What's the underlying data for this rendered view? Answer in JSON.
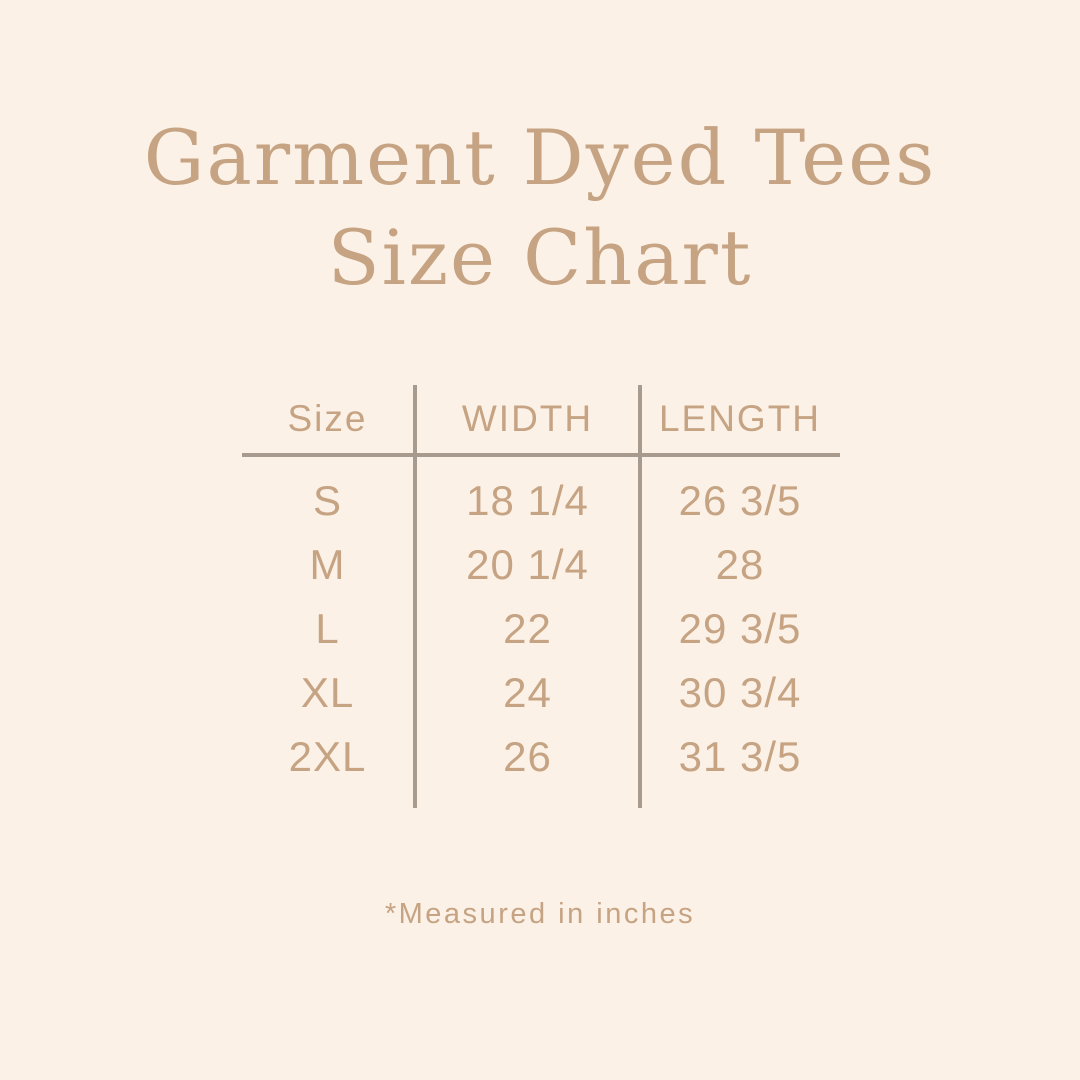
{
  "theme": {
    "bg": "#fcf1e6",
    "text": "#c5a383",
    "line": "#a89a8c"
  },
  "title": {
    "line1": "Garment Dyed Tees",
    "line2": "Size Chart"
  },
  "table": {
    "headers": [
      "Size",
      "WIDTH",
      "LENGTH"
    ],
    "rows": [
      {
        "size": "S",
        "width": "18 1/4",
        "length": "26 3/5"
      },
      {
        "size": "M",
        "width": "20 1/4",
        "length": "28"
      },
      {
        "size": "L",
        "width": "22",
        "length": "29 3/5"
      },
      {
        "size": "XL",
        "width": "24",
        "length": "30 3/4"
      },
      {
        "size": "2XL",
        "width": "26",
        "length": "31 3/5"
      }
    ]
  },
  "footnote": "*Measured in inches"
}
